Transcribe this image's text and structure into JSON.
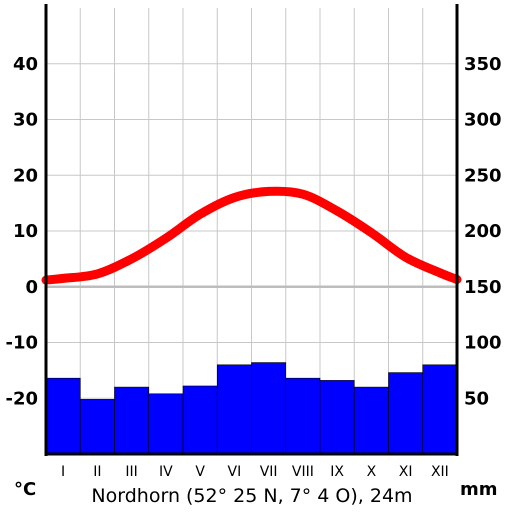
{
  "chart_data": {
    "type": "bar+line",
    "title": "Nordhorn  (52° 25 N, 7° 4 O), 24m",
    "categories": [
      "I",
      "II",
      "III",
      "IV",
      "V",
      "VI",
      "VII",
      "VIII",
      "IX",
      "X",
      "XI",
      "XII"
    ],
    "temperature": {
      "unit": "°C",
      "color": "#ff0000",
      "values": [
        1.5,
        2.3,
        5.0,
        8.7,
        13.0,
        16.0,
        17.1,
        16.6,
        13.6,
        9.7,
        5.3,
        2.5
      ],
      "ticks": [
        -20,
        -10,
        0,
        10,
        20,
        30,
        40
      ],
      "ylim": [
        -30,
        50
      ]
    },
    "precipitation": {
      "unit": "mm",
      "color": "#0000ff",
      "values": [
        68,
        49,
        60,
        54,
        61,
        80,
        82,
        68,
        66,
        60,
        73,
        80
      ],
      "ticks": [
        50,
        100,
        150,
        200,
        250,
        300,
        350
      ],
      "ylim": [
        0,
        400
      ]
    },
    "grid": true
  }
}
